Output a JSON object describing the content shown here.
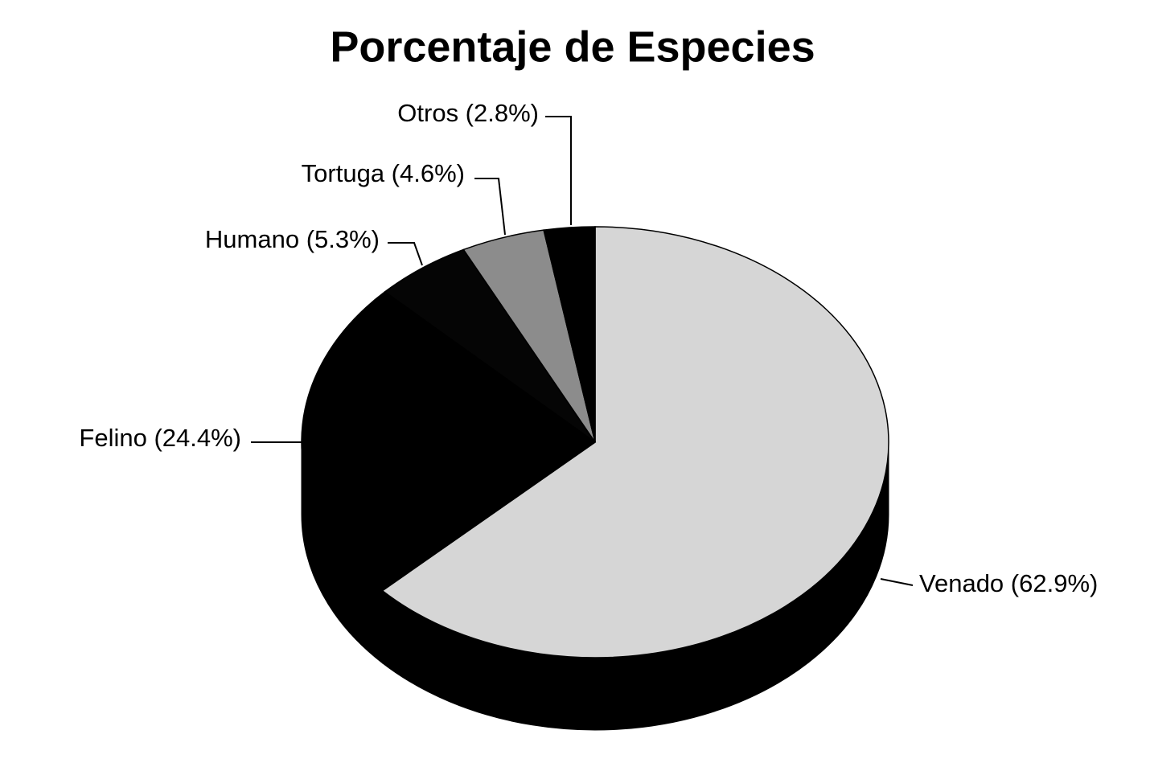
{
  "chart_data": {
    "type": "pie",
    "title": "Porcentaje de Especies",
    "values": [
      62.9,
      24.4,
      5.3,
      4.6,
      2.8
    ],
    "value_labels": [
      "Venado (62.9%)",
      "Felino (24.4%)",
      "Humano (5.3%)",
      "Tortuga (4.6%)",
      "Otros (2.8%)"
    ],
    "colors": [
      "#d6d6d6",
      "#000000",
      "#050505",
      "#8c8c8c",
      "#000000"
    ]
  }
}
